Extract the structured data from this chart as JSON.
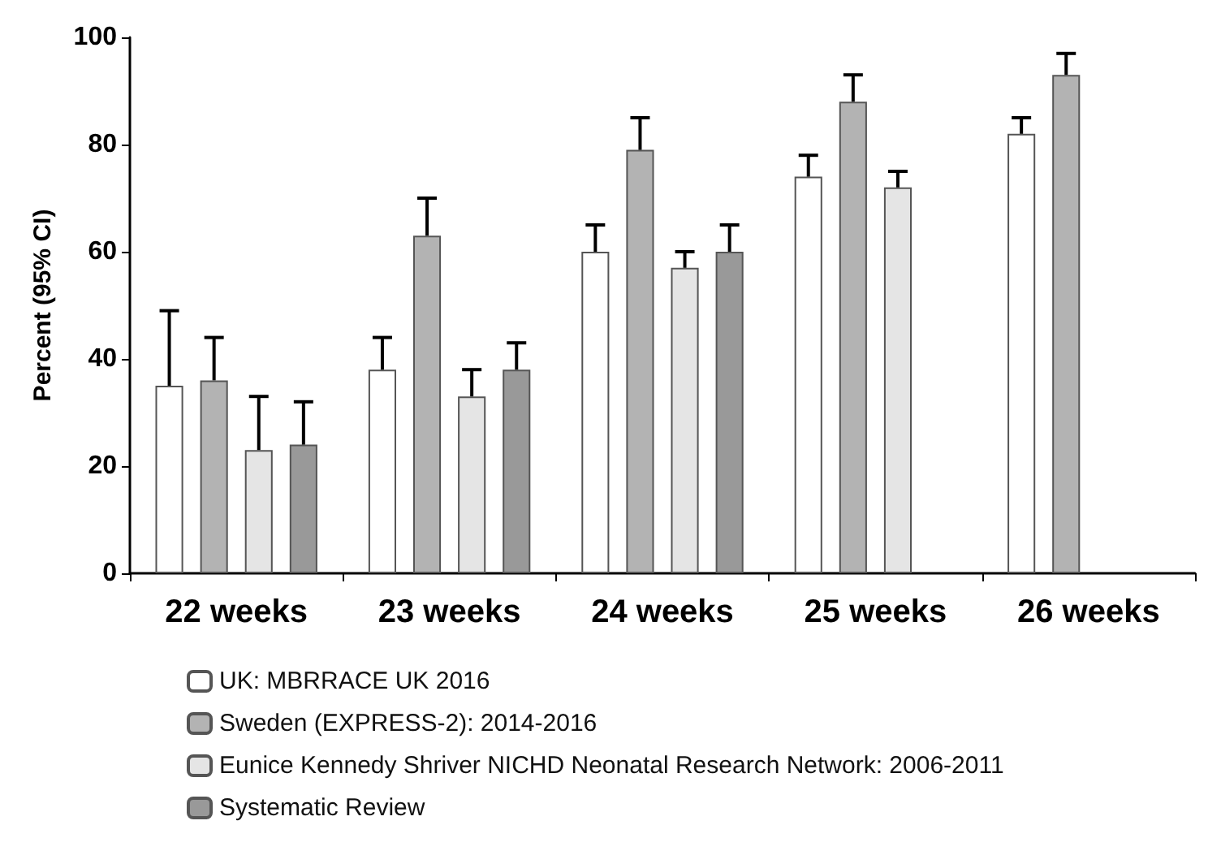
{
  "chart_data": {
    "type": "bar",
    "ylabel": "Percent (95% CI)",
    "categories": [
      "22 weeks",
      "23 weeks",
      "24 weeks",
      "25 weeks",
      "26 weeks"
    ],
    "ylim": [
      0,
      100
    ],
    "yticks": [
      0,
      20,
      40,
      60,
      80,
      100
    ],
    "legend": "bottom left",
    "series": [
      {
        "name": "UK: MBRRACE UK 2016",
        "color": "#ffffff",
        "values": [
          35,
          38,
          60,
          74,
          82
        ],
        "errors": [
          [
            35,
            49
          ],
          [
            38,
            44
          ],
          [
            60,
            65
          ],
          [
            74,
            78
          ],
          [
            82,
            85
          ]
        ]
      },
      {
        "name": "Sweden (EXPRESS-2): 2014-2016",
        "color": "#b3b3b3",
        "values": [
          36,
          63,
          79,
          88,
          93
        ],
        "errors": [
          [
            36,
            44
          ],
          [
            63,
            70
          ],
          [
            79,
            85
          ],
          [
            88,
            93
          ],
          [
            93,
            97
          ]
        ]
      },
      {
        "name": "Eunice Kennedy Shriver NICHD Neonatal Research Network: 2006-2011",
        "color": "#e5e5e5",
        "values": [
          23,
          33,
          57,
          72,
          null
        ],
        "errors": [
          [
            23,
            33
          ],
          [
            33,
            38
          ],
          [
            57,
            60
          ],
          [
            72,
            75
          ],
          null
        ]
      },
      {
        "name": "Systematic Review",
        "color": "#999999",
        "values": [
          24,
          38,
          60,
          null,
          null
        ],
        "errors": [
          [
            24,
            32
          ],
          [
            38,
            43
          ],
          [
            60,
            65
          ],
          null,
          null
        ]
      }
    ]
  }
}
